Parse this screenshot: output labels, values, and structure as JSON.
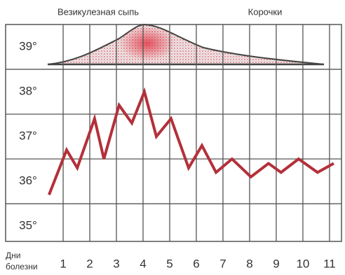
{
  "chart_data": {
    "type": "line",
    "annotations": [
      "Везикулезная сыпь",
      "Корочки"
    ],
    "xlabel": [
      "Дни",
      "болезни"
    ],
    "x": [
      0.47,
      1.13,
      1.53,
      2.18,
      2.53,
      3.1,
      3.58,
      4.05,
      4.5,
      5.05,
      5.71,
      6.21,
      6.74,
      7.34,
      8.05,
      8.71,
      9.18,
      9.84,
      10.55,
      11.16
    ],
    "values": [
      35.7,
      36.7,
      36.3,
      37.4,
      36.5,
      37.7,
      37.3,
      38.0,
      37.0,
      37.4,
      36.3,
      36.8,
      36.2,
      36.5,
      36.1,
      36.4,
      36.2,
      36.5,
      36.2,
      36.4
    ],
    "color": "#b3303a",
    "xlim": [
      -1.16,
      11.45
    ],
    "xticks": [
      1,
      2,
      3,
      4,
      5,
      6,
      7,
      8,
      9,
      10,
      11
    ],
    "ylim": [
      34.66,
      39.5
    ],
    "yticks": [
      {
        "value": 35,
        "label": "35°"
      },
      {
        "value": 36,
        "label": "36°"
      },
      {
        "value": 37,
        "label": "37°"
      },
      {
        "value": 38,
        "label": "38°"
      },
      {
        "value": 39,
        "label": "39°"
      }
    ],
    "grid": true
  }
}
